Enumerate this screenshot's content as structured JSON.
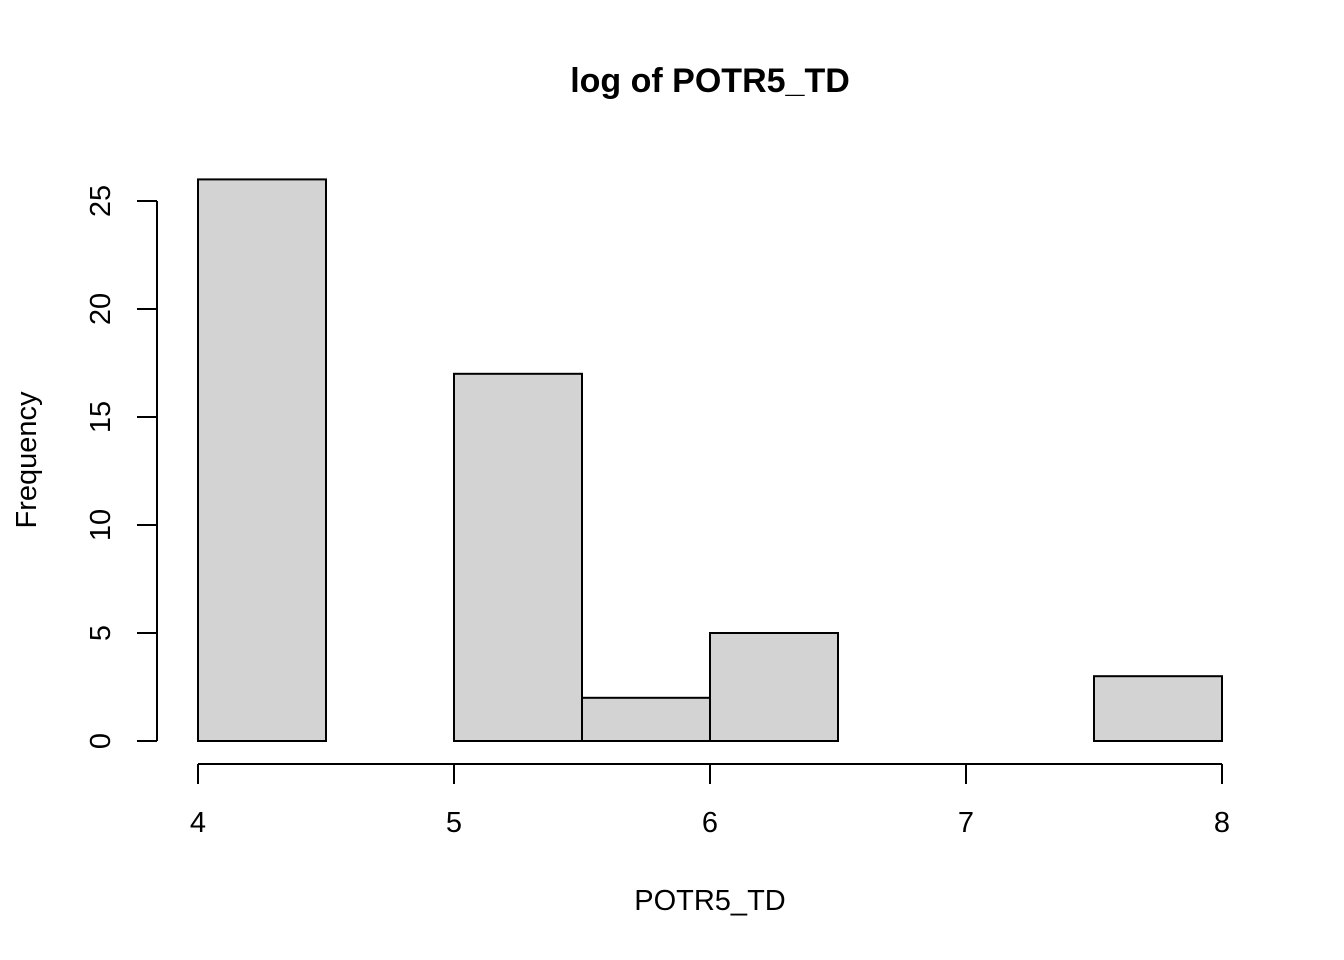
{
  "chart_data": {
    "type": "bar",
    "histogram": true,
    "title": "log of POTR5_TD",
    "xlabel": "POTR5_TD",
    "ylabel": "Frequency",
    "bins": [
      {
        "x0": 4.0,
        "x1": 4.5,
        "count": 26
      },
      {
        "x0": 4.5,
        "x1": 5.0,
        "count": 0
      },
      {
        "x0": 5.0,
        "x1": 5.5,
        "count": 17
      },
      {
        "x0": 5.5,
        "x1": 6.0,
        "count": 2
      },
      {
        "x0": 6.0,
        "x1": 6.5,
        "count": 5
      },
      {
        "x0": 6.5,
        "x1": 7.0,
        "count": 0
      },
      {
        "x0": 7.0,
        "x1": 7.5,
        "count": 0
      },
      {
        "x0": 7.5,
        "x1": 8.0,
        "count": 3
      }
    ],
    "xlim": [
      4,
      8
    ],
    "ylim": [
      0,
      26
    ],
    "x_ticks": [
      "4",
      "5",
      "6",
      "7",
      "8"
    ],
    "y_ticks": [
      "0",
      "5",
      "10",
      "15",
      "20",
      "25"
    ],
    "bar_fill": "#d3d3d3",
    "grid": false,
    "legend": "none"
  }
}
